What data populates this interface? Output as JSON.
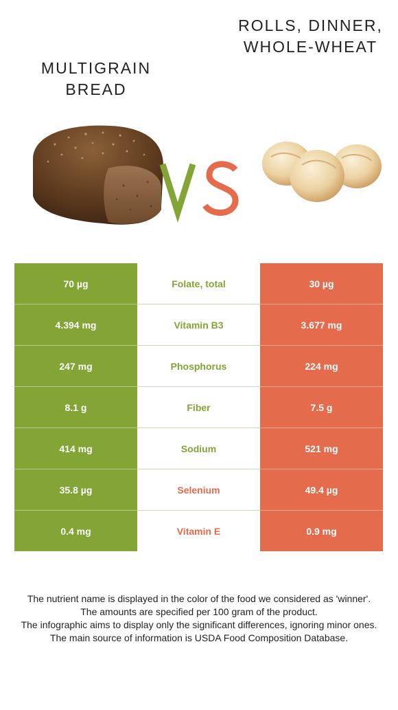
{
  "left_food": {
    "name": "Multigrain bread",
    "color": "#82a535",
    "image_icon": "bread-loaf-icon"
  },
  "right_food": {
    "name": "Rolls, dinner, whole-wheat",
    "color": "#e46b4b",
    "image_icon": "dinner-rolls-icon"
  },
  "vs": {
    "v": "V",
    "s": "S"
  },
  "rows": [
    {
      "left": "70 µg",
      "nutrient": "Folate, total",
      "right": "30 µg",
      "winner": "left"
    },
    {
      "left": "4.394 mg",
      "nutrient": "Vitamin B3",
      "right": "3.677 mg",
      "winner": "left"
    },
    {
      "left": "247 mg",
      "nutrient": "Phosphorus",
      "right": "224 mg",
      "winner": "left"
    },
    {
      "left": "8.1 g",
      "nutrient": "Fiber",
      "right": "7.5 g",
      "winner": "left"
    },
    {
      "left": "414 mg",
      "nutrient": "Sodium",
      "right": "521 mg",
      "winner": "left"
    },
    {
      "left": "35.8 µg",
      "nutrient": "Selenium",
      "right": "49.4 µg",
      "winner": "right"
    },
    {
      "left": "0.4 mg",
      "nutrient": "Vitamin E",
      "right": "0.9 mg",
      "winner": "right"
    }
  ],
  "footnote": [
    "The nutrient name is displayed in the color of the food we considered as 'winner'.",
    "The amounts are specified per 100 gram of the product.",
    "The infographic aims to display only the significant differences, ignoring minor ones.",
    "The main source of information is USDA Food Composition Database."
  ]
}
